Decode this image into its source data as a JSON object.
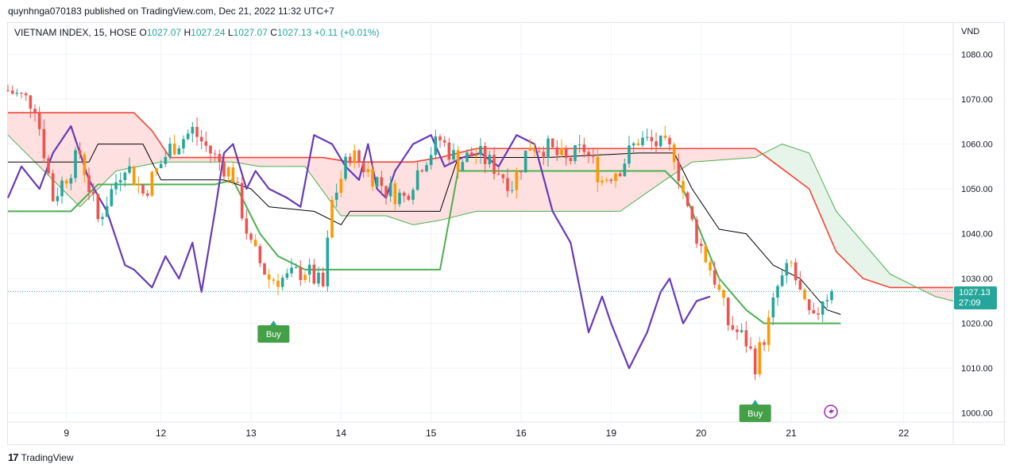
{
  "header": {
    "publisher_line": "quynhnga070183 published on TradingView.com, Dec 21, 2022 11:32 UTC+7"
  },
  "legend": {
    "symbol": "VIETNAM INDEX, 15, HOSE",
    "open_label": "O",
    "open": "1027.07",
    "high_label": "H",
    "high": "1027.24",
    "low_label": "L",
    "low": "1027.07",
    "close_label": "C",
    "close": "1027.13",
    "change": "+0.11 (+0.01%)"
  },
  "axis": {
    "unit": "VND"
  },
  "price_tag": {
    "price": "1027.13",
    "countdown": "27:09"
  },
  "signals": {
    "buy_label": "Buy"
  },
  "footer": {
    "brand": "TradingView",
    "logo_glyph": "17"
  },
  "colors": {
    "up": "#26a69a",
    "down": "#ef5350",
    "orange": "#ff9800",
    "purple": "#673ab7",
    "green_line": "#4caf50",
    "red_line": "#f44336",
    "cloud_red": "#fde0df",
    "cloud_green": "#e6f4ea"
  },
  "chart_data": {
    "type": "candlestick",
    "y_ticks": [
      1000,
      1010,
      1020,
      1030,
      1040,
      1050,
      1060,
      1070,
      1080
    ],
    "y_tick_labels": [
      "1000.00",
      "1010.00",
      "1020.00",
      "1030.00",
      "1040.00",
      "1050.00",
      "1060.00",
      "1070.00",
      "1080.00"
    ],
    "ylim": [
      998,
      1087
    ],
    "x_tick_labels": [
      "9",
      "12",
      "13",
      "14",
      "15",
      "16",
      "19",
      "20",
      "21",
      "22"
    ],
    "x_ticks_bar_index": [
      13,
      34,
      54,
      74,
      94,
      114,
      134,
      154,
      174,
      199
    ],
    "xlim_bars": [
      0,
      210
    ],
    "last_price": 1027.13,
    "buy_signal_bars": [
      59,
      166
    ],
    "anchors": [
      {
        "bar": 0,
        "price": 1072
      },
      {
        "bar": 6,
        "price": 1069
      },
      {
        "bar": 10,
        "price": 1048
      },
      {
        "bar": 16,
        "price": 1058
      },
      {
        "bar": 20,
        "price": 1043
      },
      {
        "bar": 26,
        "price": 1056
      },
      {
        "bar": 30,
        "price": 1049
      },
      {
        "bar": 36,
        "price": 1059
      },
      {
        "bar": 41,
        "price": 1063
      },
      {
        "bar": 46,
        "price": 1057
      },
      {
        "bar": 50,
        "price": 1053
      },
      {
        "bar": 54,
        "price": 1037
      },
      {
        "bar": 58,
        "price": 1030
      },
      {
        "bar": 62,
        "price": 1030
      },
      {
        "bar": 66,
        "price": 1032
      },
      {
        "bar": 70,
        "price": 1028
      },
      {
        "bar": 72,
        "price": 1047
      },
      {
        "bar": 76,
        "price": 1058
      },
      {
        "bar": 80,
        "price": 1054
      },
      {
        "bar": 84,
        "price": 1050
      },
      {
        "bar": 88,
        "price": 1048
      },
      {
        "bar": 92,
        "price": 1056
      },
      {
        "bar": 96,
        "price": 1061
      },
      {
        "bar": 100,
        "price": 1056
      },
      {
        "bar": 104,
        "price": 1058
      },
      {
        "bar": 108,
        "price": 1055
      },
      {
        "bar": 112,
        "price": 1051
      },
      {
        "bar": 116,
        "price": 1060
      },
      {
        "bar": 120,
        "price": 1059
      },
      {
        "bar": 124,
        "price": 1056
      },
      {
        "bar": 128,
        "price": 1059
      },
      {
        "bar": 132,
        "price": 1052
      },
      {
        "bar": 136,
        "price": 1055
      },
      {
        "bar": 140,
        "price": 1061
      },
      {
        "bar": 144,
        "price": 1060
      },
      {
        "bar": 148,
        "price": 1058
      },
      {
        "bar": 151,
        "price": 1045
      },
      {
        "bar": 154,
        "price": 1037
      },
      {
        "bar": 157,
        "price": 1030
      },
      {
        "bar": 160,
        "price": 1020
      },
      {
        "bar": 164,
        "price": 1016
      },
      {
        "bar": 166,
        "price": 1011
      },
      {
        "bar": 169,
        "price": 1020
      },
      {
        "bar": 171,
        "price": 1028
      },
      {
        "bar": 174,
        "price": 1033
      },
      {
        "bar": 177,
        "price": 1023
      },
      {
        "bar": 179,
        "price": 1020
      },
      {
        "bar": 181,
        "price": 1026
      },
      {
        "bar": 183,
        "price": 1027
      }
    ],
    "series": [
      {
        "id": "conversion",
        "color": "#000000",
        "points": [
          [
            0,
            1056
          ],
          [
            18,
            1056
          ],
          [
            20,
            1060
          ],
          [
            30,
            1060
          ],
          [
            34,
            1052
          ],
          [
            48,
            1052
          ],
          [
            54,
            1050
          ],
          [
            58,
            1046
          ],
          [
            68,
            1045
          ],
          [
            74,
            1042
          ],
          [
            76,
            1045
          ],
          [
            96,
            1045
          ],
          [
            100,
            1057
          ],
          [
            120,
            1057
          ],
          [
            140,
            1058
          ],
          [
            148,
            1058
          ],
          [
            152,
            1050
          ],
          [
            158,
            1041
          ],
          [
            164,
            1040
          ],
          [
            170,
            1033
          ],
          [
            176,
            1030
          ],
          [
            182,
            1023
          ],
          [
            185,
            1022
          ]
        ]
      },
      {
        "id": "base",
        "color": "#4caf50",
        "points": [
          [
            0,
            1045
          ],
          [
            14,
            1045
          ],
          [
            20,
            1051
          ],
          [
            46,
            1051
          ],
          [
            50,
            1052
          ],
          [
            56,
            1040
          ],
          [
            60,
            1035
          ],
          [
            66,
            1032
          ],
          [
            76,
            1032
          ],
          [
            96,
            1032
          ],
          [
            100,
            1054
          ],
          [
            146,
            1054
          ],
          [
            150,
            1050
          ],
          [
            154,
            1040
          ],
          [
            158,
            1030
          ],
          [
            164,
            1023
          ],
          [
            168,
            1020
          ],
          [
            182,
            1020
          ],
          [
            185,
            1020
          ]
        ]
      },
      {
        "id": "lagging",
        "color": "#673ab7",
        "points": [
          [
            0,
            1048
          ],
          [
            3,
            1055
          ],
          [
            7,
            1050
          ],
          [
            10,
            1058
          ],
          [
            14,
            1064
          ],
          [
            18,
            1052
          ],
          [
            22,
            1045
          ],
          [
            26,
            1033
          ],
          [
            28,
            1032
          ],
          [
            32,
            1028
          ],
          [
            35,
            1035
          ],
          [
            38,
            1030
          ],
          [
            41,
            1038
          ],
          [
            43,
            1027
          ],
          [
            46,
            1045
          ],
          [
            48,
            1058
          ],
          [
            50,
            1060
          ],
          [
            53,
            1050
          ],
          [
            55,
            1054
          ],
          [
            58,
            1050
          ],
          [
            62,
            1048
          ],
          [
            65,
            1046
          ],
          [
            68,
            1062
          ],
          [
            72,
            1060
          ],
          [
            75,
            1055
          ],
          [
            78,
            1052
          ],
          [
            80,
            1060
          ],
          [
            82,
            1050
          ],
          [
            84,
            1048
          ],
          [
            86,
            1054
          ],
          [
            90,
            1060
          ],
          [
            94,
            1062
          ],
          [
            97,
            1055
          ],
          [
            101,
            1057
          ],
          [
            105,
            1058
          ],
          [
            109,
            1055
          ],
          [
            113,
            1062
          ],
          [
            117,
            1060
          ],
          [
            121,
            1045
          ],
          [
            125,
            1038
          ],
          [
            129,
            1018
          ],
          [
            132,
            1026
          ],
          [
            134,
            1020
          ],
          [
            138,
            1010
          ],
          [
            142,
            1018
          ],
          [
            145,
            1027
          ],
          [
            147,
            1030
          ],
          [
            150,
            1020
          ],
          [
            153,
            1025
          ],
          [
            156,
            1026
          ]
        ]
      },
      {
        "id": "leading_red",
        "color": "#f44336",
        "points": [
          [
            0,
            1067
          ],
          [
            14,
            1067
          ],
          [
            28,
            1067
          ],
          [
            32,
            1063
          ],
          [
            36,
            1057
          ],
          [
            46,
            1057
          ],
          [
            70,
            1057
          ],
          [
            76,
            1056
          ],
          [
            90,
            1056
          ],
          [
            96,
            1057
          ],
          [
            104,
            1059
          ],
          [
            120,
            1059
          ],
          [
            136,
            1059
          ],
          [
            166,
            1059
          ],
          [
            170,
            1056
          ],
          [
            178,
            1050
          ],
          [
            184,
            1036
          ],
          [
            190,
            1030
          ],
          [
            196,
            1028
          ],
          [
            210,
            1028
          ]
        ]
      },
      {
        "id": "leading_green",
        "color": "#4caf50",
        "points": [
          [
            0,
            1062
          ],
          [
            8,
            1054
          ],
          [
            16,
            1046
          ],
          [
            24,
            1054
          ],
          [
            34,
            1056
          ],
          [
            50,
            1056
          ],
          [
            56,
            1055
          ],
          [
            66,
            1055
          ],
          [
            74,
            1044
          ],
          [
            84,
            1044
          ],
          [
            90,
            1042
          ],
          [
            96,
            1043
          ],
          [
            104,
            1045
          ],
          [
            116,
            1045
          ],
          [
            136,
            1045
          ],
          [
            146,
            1052
          ],
          [
            152,
            1056
          ],
          [
            166,
            1057
          ],
          [
            172,
            1060
          ],
          [
            178,
            1058
          ],
          [
            184,
            1045
          ],
          [
            190,
            1038
          ],
          [
            196,
            1031
          ],
          [
            200,
            1029
          ],
          [
            206,
            1026
          ],
          [
            210,
            1025
          ]
        ]
      }
    ]
  }
}
